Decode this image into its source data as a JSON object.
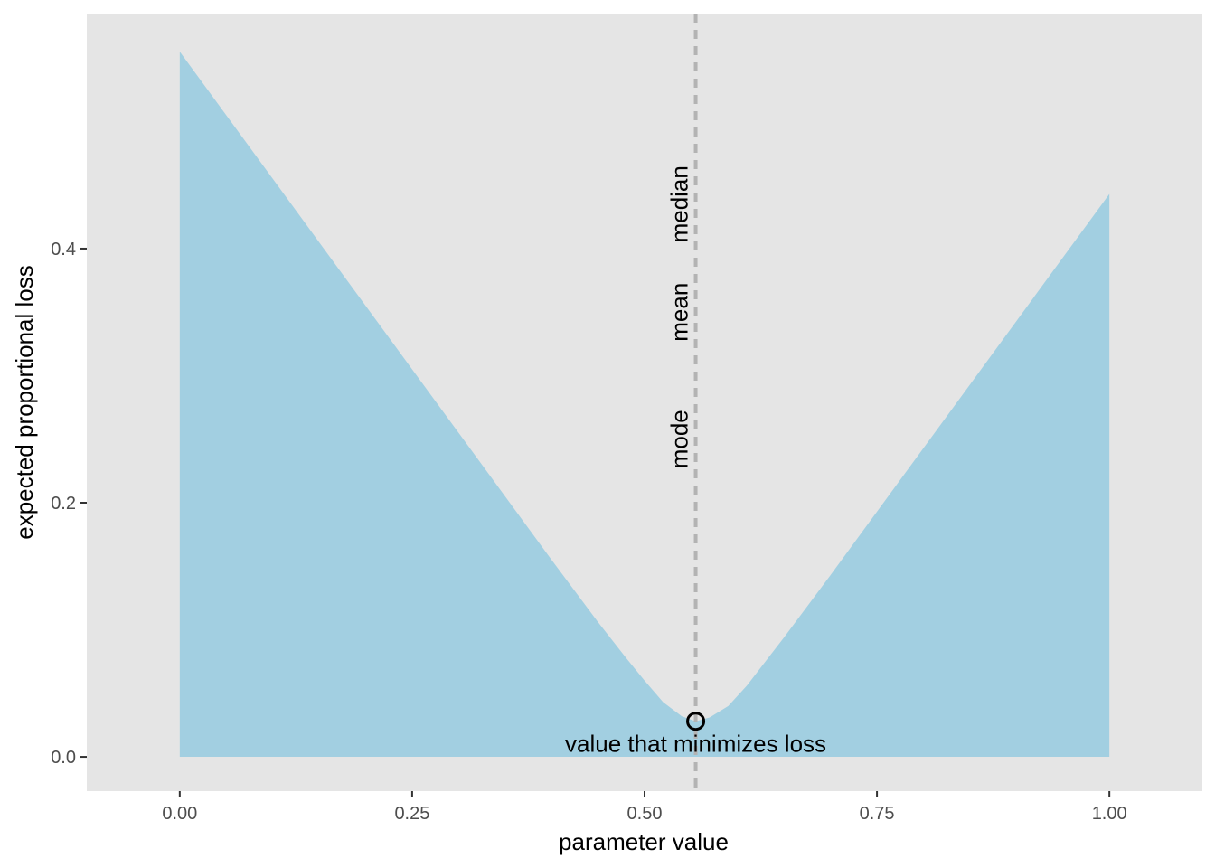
{
  "chart_data": {
    "type": "area",
    "title": "",
    "xlabel": "parameter value",
    "ylabel": "expected proportional loss",
    "xlim": [
      -0.1,
      1.1
    ],
    "ylim": [
      -0.027,
      0.585
    ],
    "x_ticks": [
      0.0,
      0.25,
      0.5,
      0.75,
      1.0
    ],
    "x_tick_labels": [
      "0.00",
      "0.25",
      "0.50",
      "0.75",
      "1.00"
    ],
    "y_ticks": [
      0.0,
      0.2,
      0.4
    ],
    "y_tick_labels": [
      "0.0",
      "0.2",
      "0.4"
    ],
    "grid": false,
    "series": [
      {
        "fill": "#a2cfe1",
        "x": [
          0.0,
          0.05,
          0.1,
          0.15,
          0.2,
          0.25,
          0.3,
          0.35,
          0.4,
          0.45,
          0.48,
          0.5,
          0.52,
          0.54,
          0.555,
          0.57,
          0.59,
          0.61,
          0.63,
          0.65,
          0.7,
          0.75,
          0.8,
          0.85,
          0.9,
          0.95,
          1.0
        ],
        "y": [
          0.555,
          0.505,
          0.455,
          0.405,
          0.355,
          0.305,
          0.255,
          0.205,
          0.155,
          0.106,
          0.078,
          0.06,
          0.043,
          0.032,
          0.028,
          0.031,
          0.04,
          0.056,
          0.075,
          0.094,
          0.143,
          0.193,
          0.243,
          0.293,
          0.343,
          0.393,
          0.443
        ]
      }
    ],
    "vline": {
      "x": 0.555,
      "color": "#b3b3b3"
    },
    "point": {
      "x": 0.555,
      "y": 0.028
    },
    "annotations": {
      "minimizer": "value that minimizes loss",
      "mode": "mode",
      "mean": "mean",
      "median": "median"
    },
    "annotation_y": {
      "mode": 0.25,
      "mean": 0.35,
      "median": 0.435
    },
    "colors": {
      "panel": "#e5e5e5",
      "area": "#a2cfe1",
      "vline": "#b3b3b3"
    }
  }
}
